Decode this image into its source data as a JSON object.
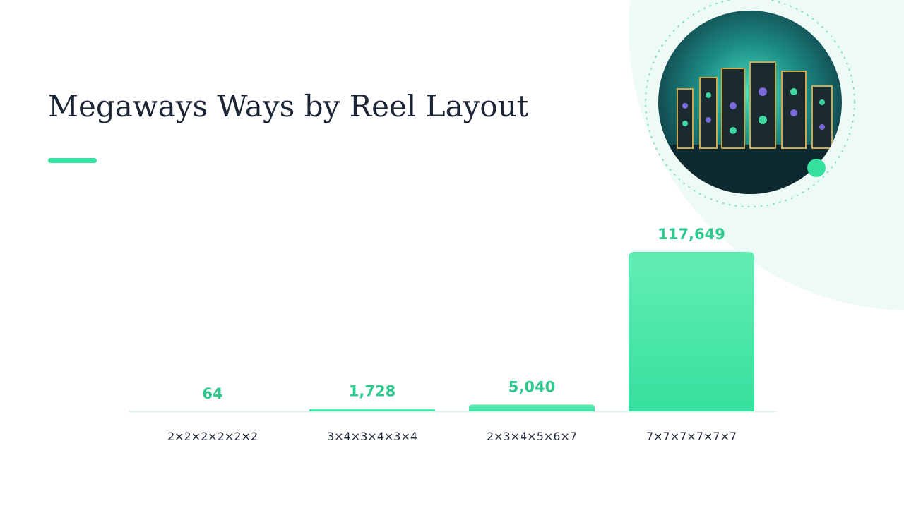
{
  "chart_data": {
    "type": "bar",
    "title": "Megaways Ways by Reel Layout",
    "categories": [
      "2×2×2×2×2×2",
      "3×4×3×4×3×4",
      "2×3×4×5×6×7",
      "7×7×7×7×7×7"
    ],
    "values": [
      64,
      1728,
      5040,
      117649
    ],
    "value_labels": [
      "64",
      "1,728",
      "5,040",
      "117,649"
    ],
    "color": "#3ee3a0"
  }
}
